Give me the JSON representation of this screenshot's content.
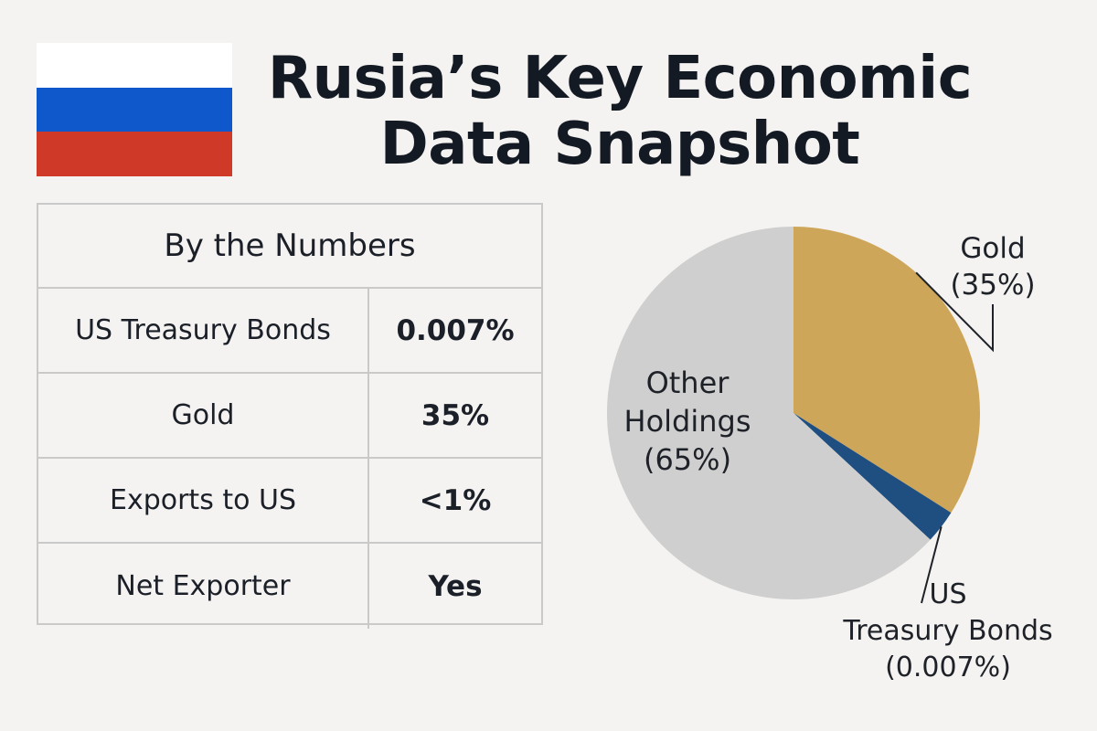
{
  "header": {
    "title_line1": "Rusia’s Key Economic",
    "title_line2": "Data Snapshot"
  },
  "flag": {
    "colors": [
      "#ffffff",
      "#0f58cc",
      "#cf3927"
    ]
  },
  "table": {
    "heading": "By the Numbers",
    "rows": [
      {
        "label": "US Treasury Bonds",
        "value": "0.007%"
      },
      {
        "label": "Gold",
        "value": "35%"
      },
      {
        "label": "Exports to US",
        "value": "<1%"
      },
      {
        "label": "Net Exporter",
        "value": "Yes"
      }
    ]
  },
  "chart_data": {
    "type": "pie",
    "slices": [
      {
        "name": "Gold",
        "label_lines": [
          "Gold",
          "(35%)"
        ],
        "value": 35,
        "color": "#cda65a"
      },
      {
        "name": "US Treasury Bonds",
        "label_lines": [
          "US",
          "Treasury Bonds",
          "(0.007%)"
        ],
        "value": 0.007,
        "display_value": 3,
        "color": "#1f4e80"
      },
      {
        "name": "Other Holdings",
        "label_lines": [
          "Other",
          "Holdings",
          "(65%)"
        ],
        "value": 65,
        "color": "#cfcfcf"
      }
    ]
  }
}
